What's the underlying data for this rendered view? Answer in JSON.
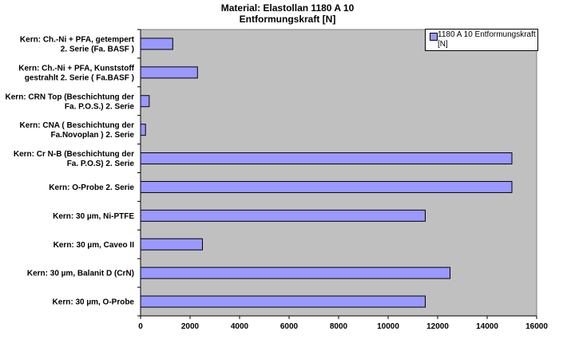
{
  "chart_data": {
    "type": "bar",
    "orientation": "horizontal",
    "title": "Material: Elastollan  1180 A 10",
    "subtitle": "Entformungskraft [N]",
    "categories": [
      [
        "Kern: Ch.-Ni + PFA, getempert",
        "2. Serie (Fa. BASF )"
      ],
      [
        "Kern: Ch.-Ni + PFA, Kunststoff",
        "gestrahlt  2. Serie ( Fa.BASF )"
      ],
      [
        "Kern: CRN Top (Beschichtung der",
        "Fa. P.O.S.) 2. Serie"
      ],
      [
        "Kern: CNA ( Beschichtung der",
        "Fa.Novoplan ) 2. Serie"
      ],
      [
        "Kern: Cr N-B (Beschichtung der",
        "Fa. P.O.S) 2. Serie"
      ],
      [
        "Kern: O-Probe  2. Serie"
      ],
      [
        "Kern: 30 µm, Ni-PTFE"
      ],
      [
        "Kern: 30 µm, Caveo II"
      ],
      [
        "Kern: 30 µm, Balanit D (CrN)"
      ],
      [
        "Kern: 30 µm, O-Probe"
      ]
    ],
    "series": [
      {
        "name": "1180 A 10 Entformungskraft [N]",
        "values": [
          1300,
          2300,
          350,
          200,
          15000,
          15000,
          11500,
          2500,
          12500,
          11500
        ]
      }
    ],
    "xlim": [
      0,
      16000
    ],
    "x_ticks": [
      0,
      2000,
      4000,
      6000,
      8000,
      10000,
      12000,
      14000,
      16000
    ],
    "legend_position": "top-right",
    "grid": false,
    "colors": {
      "bar": "#9999ff",
      "plot_bg": "#c0c0c0",
      "bar_edge": "#000000"
    }
  }
}
